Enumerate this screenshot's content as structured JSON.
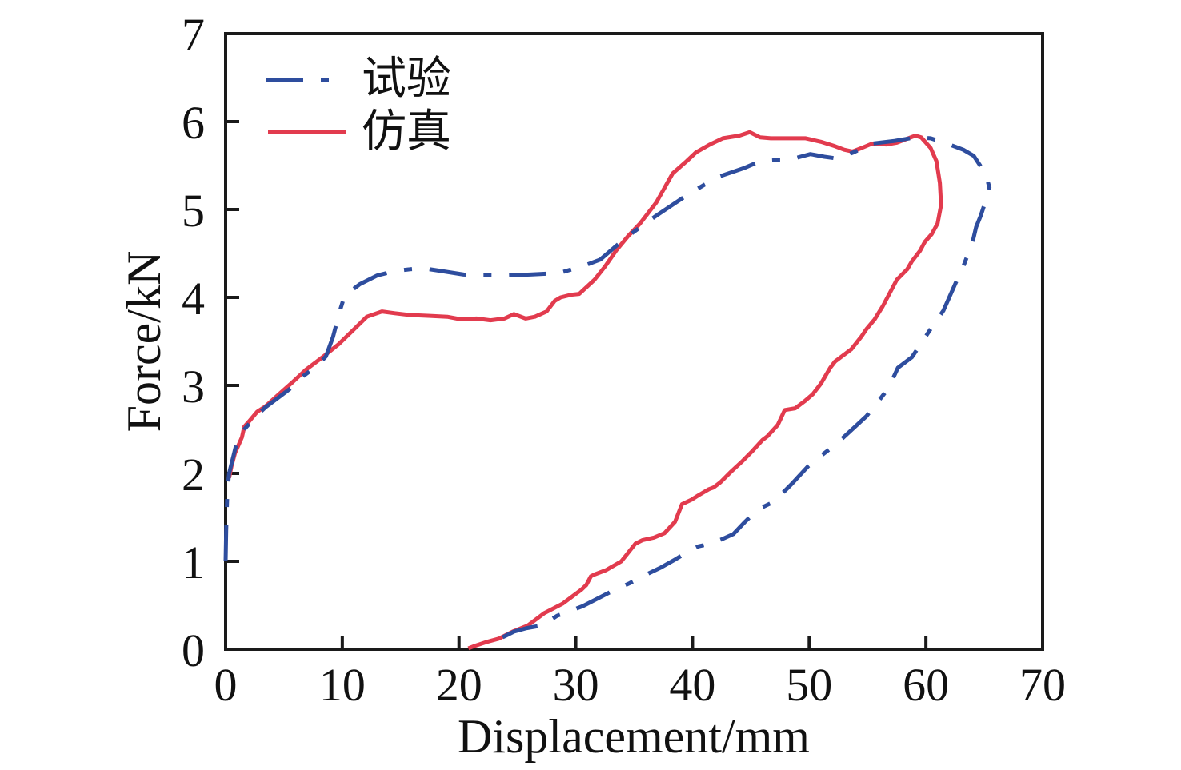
{
  "figure": {
    "background": "#ffffff",
    "axis_color": "#1a1a1a"
  },
  "chart_data": {
    "type": "line",
    "title": "",
    "xlabel": "Displacement/mm",
    "ylabel": "Force/kN",
    "xlim": [
      0,
      70
    ],
    "ylim": [
      0,
      7
    ],
    "xticks": [
      0,
      10,
      20,
      30,
      40,
      50,
      60,
      70
    ],
    "yticks": [
      0,
      1,
      2,
      3,
      4,
      5,
      6,
      7
    ],
    "grid": false,
    "legend_position": "top-left",
    "series": [
      {
        "name": "试验",
        "color": "#2e4d9e",
        "style": "dash-dot",
        "points": [
          [
            0.0,
            1.0
          ],
          [
            0.05,
            1.35
          ],
          [
            0.1,
            1.6
          ],
          [
            0.15,
            1.8
          ],
          [
            0.3,
            2.0
          ],
          [
            0.9,
            2.32
          ],
          [
            1.6,
            2.5
          ],
          [
            2.6,
            2.65
          ],
          [
            3.4,
            2.75
          ],
          [
            4.7,
            2.88
          ],
          [
            5.8,
            2.99
          ],
          [
            6.7,
            3.11
          ],
          [
            7.9,
            3.23
          ],
          [
            8.6,
            3.33
          ],
          [
            9.2,
            3.55
          ],
          [
            9.8,
            3.85
          ],
          [
            10.2,
            4.02
          ],
          [
            11.5,
            4.15
          ],
          [
            13.0,
            4.25
          ],
          [
            14.5,
            4.3
          ],
          [
            15.8,
            4.32
          ],
          [
            17.0,
            4.33
          ],
          [
            18.5,
            4.3
          ],
          [
            20.4,
            4.26
          ],
          [
            22.0,
            4.25
          ],
          [
            24.0,
            4.25
          ],
          [
            26.1,
            4.26
          ],
          [
            27.5,
            4.27
          ],
          [
            28.9,
            4.29
          ],
          [
            30.5,
            4.35
          ],
          [
            32.1,
            4.43
          ],
          [
            33.5,
            4.59
          ],
          [
            34.5,
            4.7
          ],
          [
            36.9,
            4.93
          ],
          [
            39.6,
            5.17
          ],
          [
            41.0,
            5.28
          ],
          [
            42.4,
            5.38
          ],
          [
            44.4,
            5.47
          ],
          [
            45.8,
            5.55
          ],
          [
            47.0,
            5.56
          ],
          [
            48.1,
            5.56
          ],
          [
            50.1,
            5.63
          ],
          [
            51.3,
            5.6
          ],
          [
            52.4,
            5.58
          ],
          [
            53.8,
            5.65
          ],
          [
            55.4,
            5.75
          ],
          [
            57.3,
            5.78
          ],
          [
            59.1,
            5.82
          ],
          [
            60.4,
            5.81
          ],
          [
            62.0,
            5.74
          ],
          [
            63.2,
            5.68
          ],
          [
            64.1,
            5.61
          ],
          [
            65.1,
            5.41
          ],
          [
            65.45,
            5.25
          ],
          [
            65.3,
            5.17
          ],
          [
            64.7,
            4.93
          ],
          [
            64.3,
            4.8
          ],
          [
            64.0,
            4.63
          ],
          [
            63.2,
            4.35
          ],
          [
            62.6,
            4.18
          ],
          [
            61.5,
            3.85
          ],
          [
            60.4,
            3.64
          ],
          [
            58.8,
            3.32
          ],
          [
            57.6,
            3.2
          ],
          [
            56.8,
            2.97
          ],
          [
            56.1,
            2.85
          ],
          [
            54.9,
            2.65
          ],
          [
            53.6,
            2.49
          ],
          [
            52.2,
            2.32
          ],
          [
            50.4,
            2.14
          ],
          [
            49.9,
            2.08
          ],
          [
            48.5,
            1.88
          ],
          [
            47.0,
            1.68
          ],
          [
            45.6,
            1.59
          ],
          [
            44.5,
            1.45
          ],
          [
            43.5,
            1.31
          ],
          [
            42.5,
            1.25
          ],
          [
            41.5,
            1.2
          ],
          [
            40.5,
            1.17
          ],
          [
            39.5,
            1.1
          ],
          [
            38.5,
            1.02
          ],
          [
            37.3,
            0.93
          ],
          [
            36.2,
            0.86
          ],
          [
            34.6,
            0.75
          ],
          [
            32.8,
            0.64
          ],
          [
            30.6,
            0.49
          ],
          [
            28.4,
            0.38
          ],
          [
            27.1,
            0.27
          ],
          [
            25.8,
            0.24
          ],
          [
            24.7,
            0.2
          ],
          [
            23.8,
            0.14
          ],
          [
            23.2,
            0.1
          ],
          [
            22.6,
            0.06
          ]
        ]
      },
      {
        "name": "仿真",
        "color": "#e23b4e",
        "style": "solid",
        "points": [
          [
            0.3,
            1.95
          ],
          [
            0.5,
            2.08
          ],
          [
            0.8,
            2.23
          ],
          [
            1.4,
            2.41
          ],
          [
            1.6,
            2.53
          ],
          [
            2.0,
            2.59
          ],
          [
            2.7,
            2.7
          ],
          [
            3.4,
            2.76
          ],
          [
            4.4,
            2.88
          ],
          [
            5.6,
            3.02
          ],
          [
            6.9,
            3.18
          ],
          [
            8.3,
            3.32
          ],
          [
            9.7,
            3.47
          ],
          [
            11.1,
            3.65
          ],
          [
            12.1,
            3.78
          ],
          [
            13.4,
            3.84
          ],
          [
            14.5,
            3.82
          ],
          [
            15.8,
            3.8
          ],
          [
            17.5,
            3.79
          ],
          [
            19.0,
            3.78
          ],
          [
            20.2,
            3.75
          ],
          [
            21.5,
            3.76
          ],
          [
            22.7,
            3.74
          ],
          [
            23.9,
            3.76
          ],
          [
            24.7,
            3.81
          ],
          [
            25.7,
            3.76
          ],
          [
            26.5,
            3.78
          ],
          [
            27.5,
            3.84
          ],
          [
            28.2,
            3.96
          ],
          [
            28.7,
            4.0
          ],
          [
            29.6,
            4.03
          ],
          [
            30.3,
            4.04
          ],
          [
            31.6,
            4.2
          ],
          [
            32.5,
            4.35
          ],
          [
            33.5,
            4.54
          ],
          [
            34.5,
            4.7
          ],
          [
            35.5,
            4.84
          ],
          [
            36.9,
            5.08
          ],
          [
            38.3,
            5.41
          ],
          [
            39.5,
            5.55
          ],
          [
            40.3,
            5.65
          ],
          [
            41.5,
            5.74
          ],
          [
            42.6,
            5.81
          ],
          [
            44.0,
            5.84
          ],
          [
            44.9,
            5.88
          ],
          [
            45.8,
            5.82
          ],
          [
            46.7,
            5.81
          ],
          [
            48.2,
            5.81
          ],
          [
            49.7,
            5.81
          ],
          [
            51.0,
            5.77
          ],
          [
            52.2,
            5.72
          ],
          [
            53.0,
            5.68
          ],
          [
            53.7,
            5.66
          ],
          [
            54.5,
            5.7
          ],
          [
            55.4,
            5.75
          ],
          [
            56.6,
            5.74
          ],
          [
            57.5,
            5.76
          ],
          [
            58.3,
            5.8
          ],
          [
            59.1,
            5.84
          ],
          [
            59.6,
            5.82
          ],
          [
            60.4,
            5.7
          ],
          [
            60.9,
            5.55
          ],
          [
            61.2,
            5.3
          ],
          [
            61.3,
            5.05
          ],
          [
            61.0,
            4.84
          ],
          [
            60.5,
            4.72
          ],
          [
            59.9,
            4.63
          ],
          [
            59.5,
            4.53
          ],
          [
            58.8,
            4.41
          ],
          [
            58.4,
            4.32
          ],
          [
            57.5,
            4.2
          ],
          [
            56.3,
            3.9
          ],
          [
            55.6,
            3.75
          ],
          [
            54.9,
            3.64
          ],
          [
            54.5,
            3.56
          ],
          [
            53.6,
            3.41
          ],
          [
            52.2,
            3.27
          ],
          [
            51.8,
            3.2
          ],
          [
            51.0,
            3.02
          ],
          [
            50.3,
            2.9
          ],
          [
            49.6,
            2.82
          ],
          [
            48.8,
            2.74
          ],
          [
            47.9,
            2.72
          ],
          [
            47.3,
            2.55
          ],
          [
            46.4,
            2.42
          ],
          [
            46.0,
            2.38
          ],
          [
            45.1,
            2.25
          ],
          [
            44.2,
            2.13
          ],
          [
            43.3,
            2.02
          ],
          [
            42.4,
            1.9
          ],
          [
            41.8,
            1.84
          ],
          [
            41.4,
            1.82
          ],
          [
            40.5,
            1.75
          ],
          [
            39.9,
            1.7
          ],
          [
            39.1,
            1.65
          ],
          [
            38.5,
            1.45
          ],
          [
            37.6,
            1.32
          ],
          [
            36.7,
            1.27
          ],
          [
            35.7,
            1.24
          ],
          [
            35.1,
            1.2
          ],
          [
            33.9,
            1.0
          ],
          [
            32.6,
            0.9
          ],
          [
            31.6,
            0.85
          ],
          [
            31.3,
            0.83
          ],
          [
            30.9,
            0.73
          ],
          [
            30.5,
            0.68
          ],
          [
            28.9,
            0.52
          ],
          [
            27.3,
            0.41
          ],
          [
            25.9,
            0.27
          ],
          [
            24.6,
            0.2
          ],
          [
            23.4,
            0.12
          ],
          [
            22.3,
            0.08
          ],
          [
            21.4,
            0.04
          ],
          [
            20.8,
            0.01
          ]
        ]
      }
    ]
  }
}
